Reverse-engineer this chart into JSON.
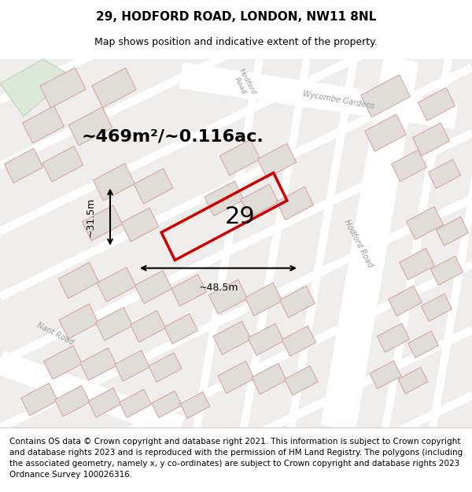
{
  "title": "29, HODFORD ROAD, LONDON, NW11 8NL",
  "subtitle": "Map shows position and indicative extent of the property.",
  "area_text": "~469m²/~0.116ac.",
  "number_label": "29",
  "width_label": "~48.5m",
  "height_label": "~31.5m",
  "footer_text": "Contains OS data © Crown copyright and database right 2021. This information is subject to Crown copyright and database rights 2023 and is reproduced with the permission of HM Land Registry. The polygons (including the associated geometry, namely x, y co-ordinates) are subject to Crown copyright and database rights 2023 Ordnance Survey 100026316.",
  "bg_color": "#f5f5f5",
  "map_bg": "#f0eeec",
  "road_color": "#ffffff",
  "plot_outline_color": "#cc0000",
  "building_color": "#e0dcd8",
  "building_stroke": "#d4a0a0",
  "green_area_color": "#dce8d8",
  "title_fontsize": 11,
  "subtitle_fontsize": 9,
  "area_fontsize": 16,
  "number_fontsize": 22,
  "label_fontsize": 9,
  "footer_fontsize": 7.5
}
